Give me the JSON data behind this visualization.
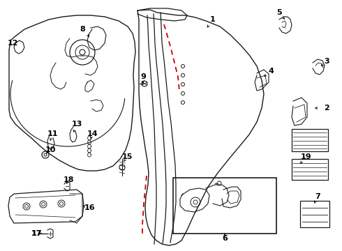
{
  "bg_color": "#ffffff",
  "line_color": "#1a1a1a",
  "red_dash_color": "#cc0000",
  "figsize": [
    4.9,
    3.6
  ],
  "dpi": 100
}
